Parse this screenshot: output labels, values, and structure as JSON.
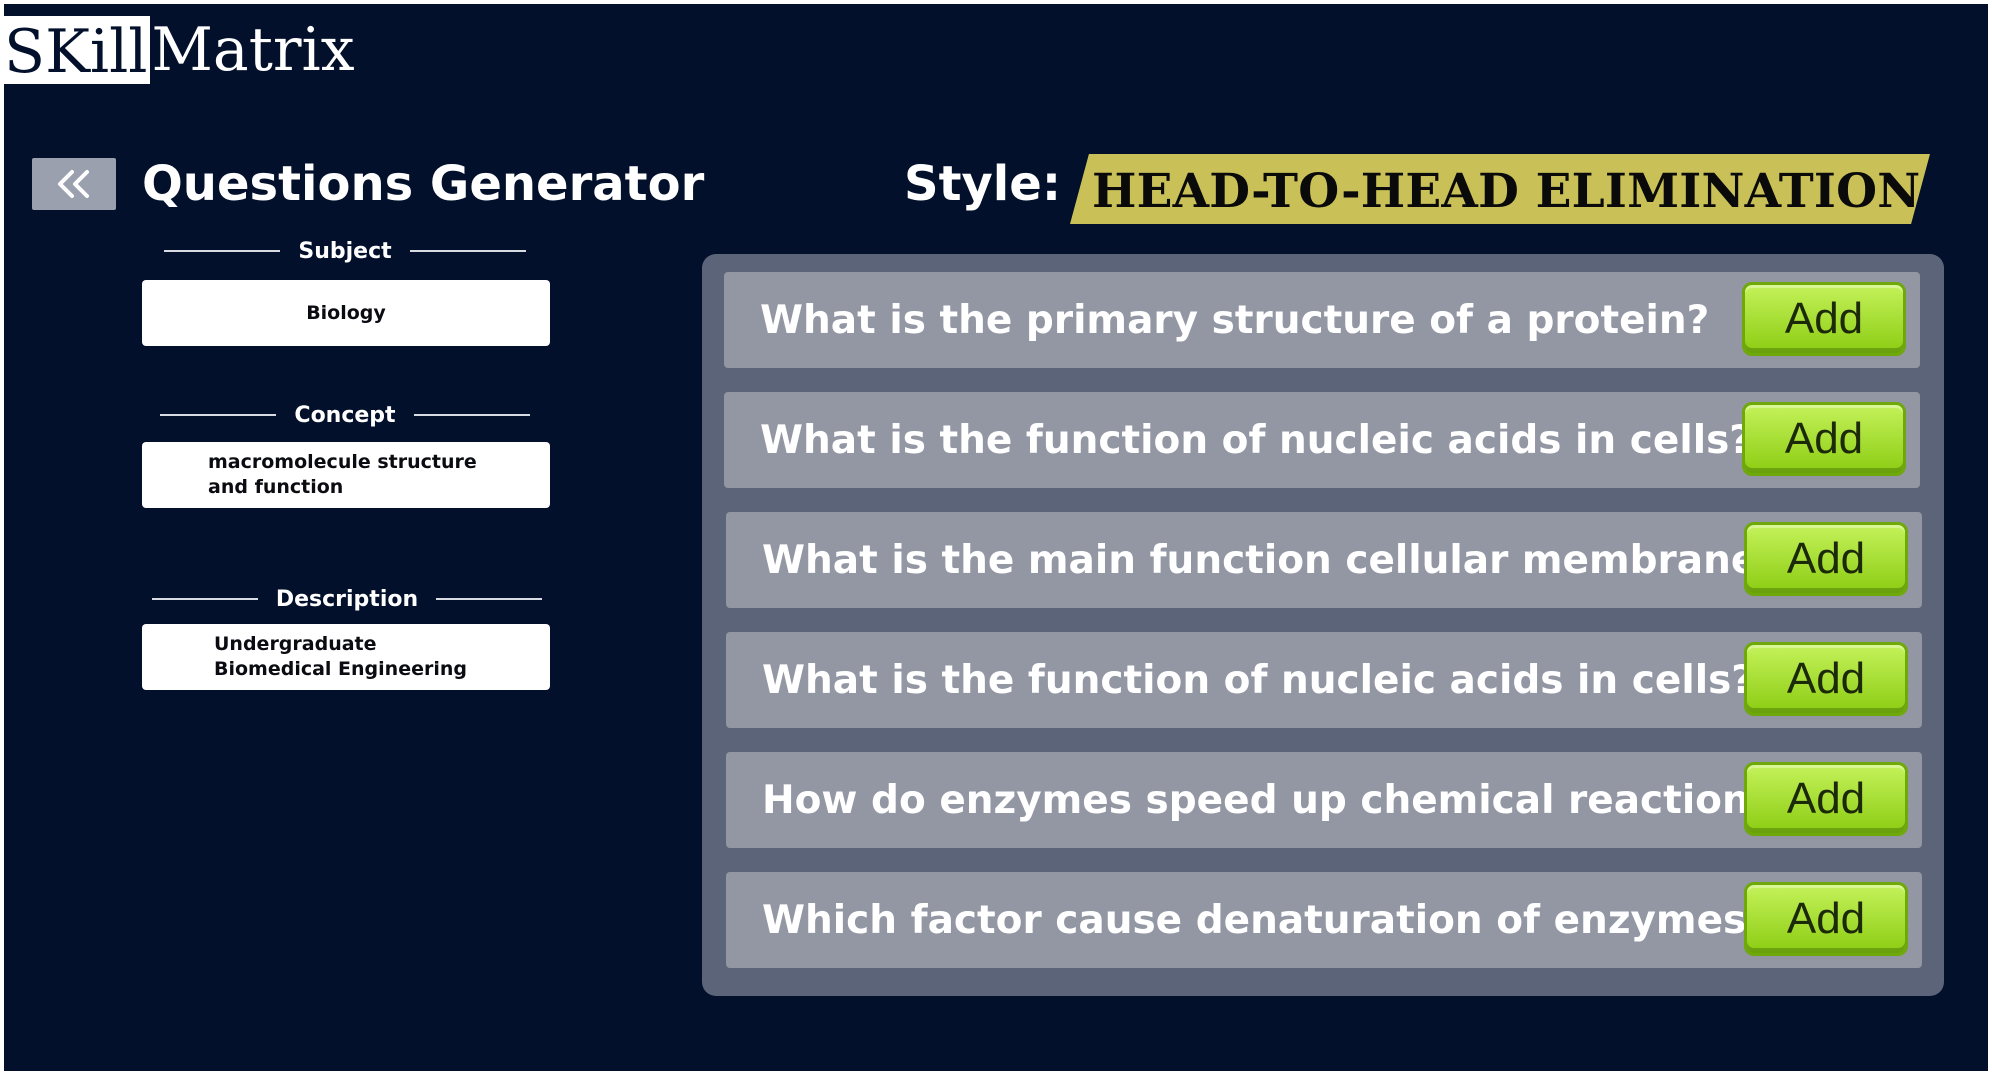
{
  "logo": {
    "boxed": "SKill",
    "rest": "Matrix"
  },
  "header": {
    "back_icon": "double-chevron-left-icon",
    "title": "Questions Generator"
  },
  "form": {
    "subject": {
      "label": "Subject",
      "value": "Biology"
    },
    "concept": {
      "label": "Concept",
      "value": "macromolecule structure\nand function"
    },
    "description": {
      "label": "Description",
      "value": "Undergraduate\nBiomedical Engineering"
    }
  },
  "style": {
    "label": "Style:",
    "value": "HEAD-TO-HEAD ELIMINATION"
  },
  "questions": [
    {
      "text": "What is the primary structure of a protein?",
      "button": "Add"
    },
    {
      "text": "What is the function of nucleic acids in cells?",
      "button": "Add"
    },
    {
      "text": "What is the main function cellular membranes?",
      "button": "Add"
    },
    {
      "text": "What is the function of nucleic acids in cells?",
      "button": "Add"
    },
    {
      "text": "How do enzymes speed up chemical reactions?",
      "button": "Add"
    },
    {
      "text": "Which factor cause denaturation of enzymes?",
      "button": "Add"
    }
  ],
  "colors": {
    "background": "#03102b",
    "panel": "#5b6478",
    "row": "#9397a4",
    "badge": "#c9c158",
    "add_button": "#a6e01e"
  }
}
